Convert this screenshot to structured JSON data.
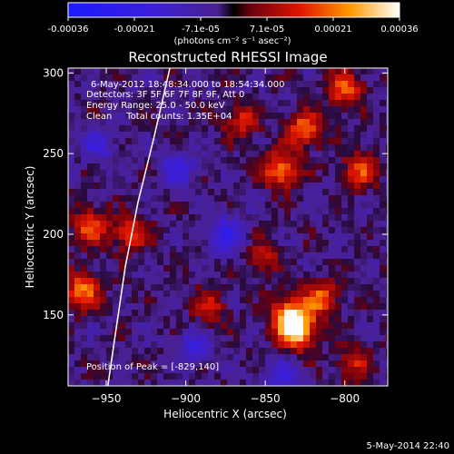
{
  "chart_data": {
    "type": "heatmap",
    "title": "Reconstructed RHESSI Image",
    "xlabel": "Heliocentric X (arcsec)",
    "ylabel": "Heliocentric Y (arcsec)",
    "x_ticks": [
      -950,
      -900,
      -850,
      -800
    ],
    "y_ticks": [
      150,
      200,
      250,
      300
    ],
    "xlim": [
      -974,
      -773
    ],
    "ylim": [
      106,
      303
    ],
    "colorbar": {
      "ticks": [
        "-0.00036",
        "-0.00021",
        "-7.1e-05",
        "7.1e-05",
        "0.00021",
        "0.00036"
      ],
      "unit_label": "(photons cm⁻² s⁻¹ asec⁻²)",
      "range": [
        -0.00036,
        0.00036
      ]
    },
    "annotations": {
      "time": "6-May-2012 18:48:34.000 to 18:54:34.000",
      "detectors": "Detectors: 3F 5F 6F 7F 8F 9F, Att 0",
      "energy": "Energy Range: 25.0 - 50.0 keV",
      "clean": "Clean     Total counts: 1.35E+04",
      "peak": "Position of Peak = [-829,140]"
    },
    "limb_arc": [
      [
        -949,
        106
      ],
      [
        -944,
        140
      ],
      [
        -938,
        180
      ],
      [
        -930,
        220
      ],
      [
        -920,
        260
      ],
      [
        -910,
        303
      ]
    ],
    "hot_regions": [
      {
        "x": -830,
        "y": 140,
        "v": 0.00036
      },
      {
        "x": -835,
        "y": 150,
        "v": 0.00028
      },
      {
        "x": -815,
        "y": 160,
        "v": 0.00022
      },
      {
        "x": -840,
        "y": 240,
        "v": 0.00026
      },
      {
        "x": -825,
        "y": 265,
        "v": 0.00024
      },
      {
        "x": -800,
        "y": 290,
        "v": 0.00022
      },
      {
        "x": -790,
        "y": 240,
        "v": 0.0002
      },
      {
        "x": -965,
        "y": 165,
        "v": 0.00024
      },
      {
        "x": -960,
        "y": 205,
        "v": 0.00022
      },
      {
        "x": -935,
        "y": 200,
        "v": 0.00018
      },
      {
        "x": -865,
        "y": 270,
        "v": 0.00016
      },
      {
        "x": -885,
        "y": 155,
        "v": 0.00014
      },
      {
        "x": -850,
        "y": 185,
        "v": 0.00012
      },
      {
        "x": -795,
        "y": 120,
        "v": 0.00015
      }
    ],
    "cold_regions": [
      {
        "x": -875,
        "y": 200,
        "v": -0.00018
      },
      {
        "x": -905,
        "y": 240,
        "v": -0.00015
      },
      {
        "x": -840,
        "y": 110,
        "v": -0.00014
      },
      {
        "x": -895,
        "y": 130,
        "v": -0.00013
      },
      {
        "x": -955,
        "y": 255,
        "v": -0.00012
      }
    ]
  },
  "footer": {
    "timestamp": "5-May-2014 22:40"
  }
}
